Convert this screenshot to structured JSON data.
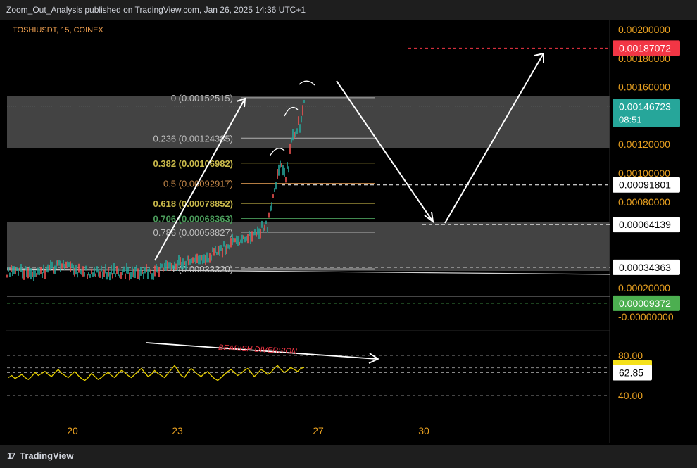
{
  "header": {
    "attribution": "Zoom_Out_Analysis published on TradingView.com, Jan 26, 2025 14:36 UTC+1"
  },
  "symbol": {
    "label": "TOSHIUSDT, 15, COINEX"
  },
  "footer": {
    "brand": "TradingView"
  },
  "colors": {
    "background": "#000000",
    "price_up": "#26a69a",
    "price_down": "#ef5350",
    "target_badge": "#f23645",
    "current_badge": "#26a69a",
    "green_badge": "#4caf50",
    "rsi_line": "#e8d000",
    "fib_text": "#bfbfbf"
  },
  "chart_data": [
    {
      "type": "line",
      "name": "price",
      "y_axis": {
        "ylim": [
          -2e-05,
          0.00021
        ],
        "ticks": [
          0.002,
          0.0018,
          0.0016,
          0.0012,
          0.001,
          0.0008,
          0.0002,
          -0.0
        ],
        "tick_labels": [
          "0.00200000",
          "0.00180000",
          "0.00160000",
          "0.00120000",
          "0.00100000",
          "0.00080000",
          "0.00020000",
          "-0.00000000"
        ]
      },
      "price_tags": [
        {
          "label": "0.00187072",
          "value": 0.00187072,
          "style": "red"
        },
        {
          "label": "0.00146723",
          "sub": "08:51",
          "value": 0.00146723,
          "style": "teal"
        },
        {
          "label": "0.00091801",
          "value": 0.00091801,
          "style": "white"
        },
        {
          "label": "0.00064139",
          "value": 0.00064139,
          "style": "white"
        },
        {
          "label": "0.00034363",
          "value": 0.00034363,
          "style": "white"
        },
        {
          "label": "0.00009372",
          "value": 9.372e-05,
          "style": "green"
        }
      ],
      "fib_levels": [
        {
          "ratio": "0",
          "label": "0 (0.00152515)",
          "value": 0.00152515,
          "color": "#bfbfbf"
        },
        {
          "ratio": "0.236",
          "label": "0.236 (0.00124385)",
          "value": 0.00124385,
          "color": "#bfbfbf"
        },
        {
          "ratio": "0.382",
          "label": "0.382 (0.00106982)",
          "value": 0.00106982,
          "color": "#c9b94a"
        },
        {
          "ratio": "0.5",
          "label": "0.5 (0.00092917)",
          "value": 0.00092917,
          "color": "#c88a4a"
        },
        {
          "ratio": "0.618",
          "label": "0.618 (0.00078852)",
          "value": 0.00078852,
          "color": "#c9b94a"
        },
        {
          "ratio": "0.706",
          "label": "0.706 (0.00068363)",
          "value": 0.00068363,
          "color": "#4a9a5a"
        },
        {
          "ratio": "0.786",
          "label": "0.786 (0.00058827)",
          "value": 0.00058827,
          "color": "#bfbfbf"
        },
        {
          "ratio": "1",
          "label": "1 (0.00033320)",
          "value": 0.0003332,
          "color": "#bfbfbf"
        }
      ],
      "x_axis": {
        "tick_labels": [
          "20",
          "23",
          "27",
          "30"
        ]
      }
    },
    {
      "type": "line",
      "name": "RSI",
      "values": [
        58,
        60,
        57,
        59,
        61,
        58,
        56,
        59,
        63,
        60,
        62,
        64,
        61,
        59,
        63,
        66,
        62,
        60,
        58,
        61,
        64,
        60,
        57,
        55,
        58,
        62,
        59,
        56,
        58,
        61,
        63,
        60,
        58,
        62,
        65,
        63,
        60,
        58,
        61,
        64,
        67,
        63,
        59,
        61,
        65,
        62,
        60,
        58,
        62,
        66,
        70,
        65,
        60,
        58,
        63,
        67,
        64,
        61,
        59,
        62,
        64,
        60,
        57,
        55,
        58,
        61,
        64,
        66,
        63,
        60,
        62,
        65,
        67,
        63,
        59,
        62,
        66,
        64,
        61,
        63,
        67,
        70,
        66,
        63,
        65,
        68,
        66,
        64,
        67,
        68
      ],
      "reference_lines": [
        80,
        67.66,
        62.85,
        40
      ],
      "axis_labels": [
        "80.00",
        "40.00"
      ],
      "value_tags": [
        {
          "label": "67.66",
          "value": 67.66,
          "style": "yellow"
        },
        {
          "label": "62.85",
          "value": 62.85,
          "style": "white"
        }
      ],
      "annotation": "BEARISH DIVERSION"
    }
  ]
}
